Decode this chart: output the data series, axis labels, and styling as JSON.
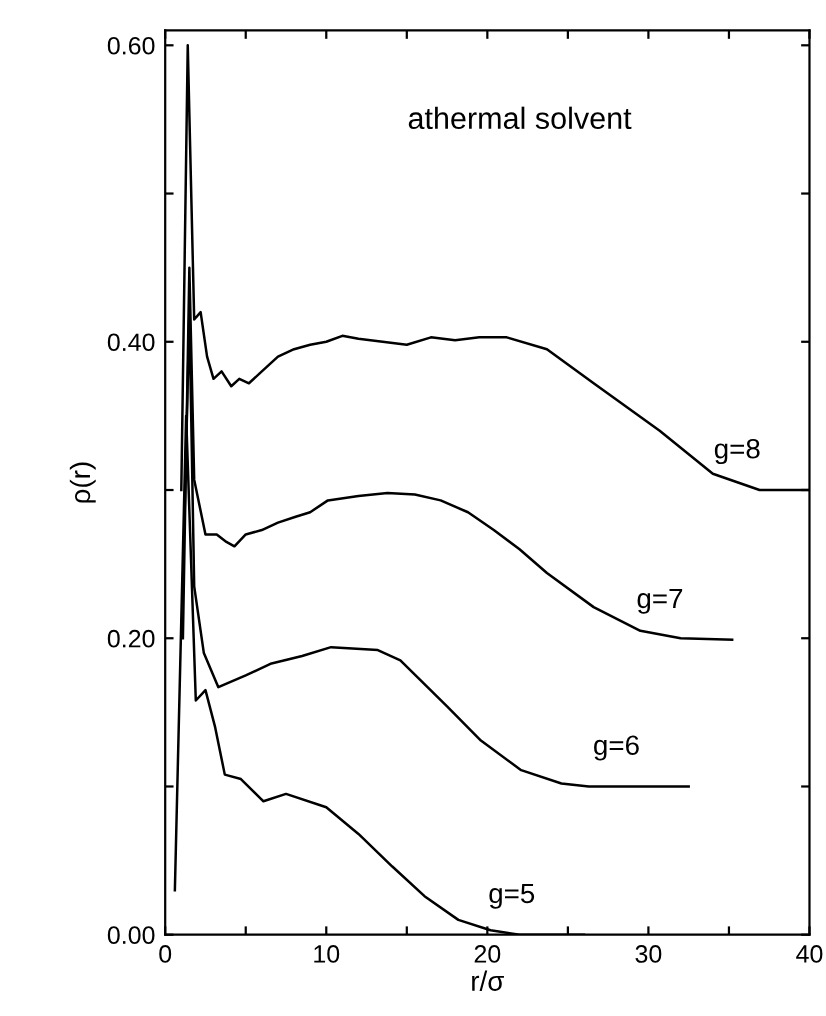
{
  "chart_data": {
    "type": "line",
    "xlabel": "r/σ",
    "ylabel": "ρ(r)",
    "annotations": [
      "athermal solvent"
    ],
    "xlim": [
      0,
      40
    ],
    "ylim": [
      0,
      0.61
    ],
    "xticks": [
      0,
      {
        "value": 5,
        "label": null
      },
      10,
      {
        "value": 15,
        "label": null
      },
      20,
      {
        "value": 25,
        "label": null
      },
      30,
      {
        "value": 35,
        "label": null
      },
      40
    ],
    "yticks": [
      {
        "value": 0,
        "label": "0.00"
      },
      {
        "value": 0.1,
        "label": null
      },
      {
        "value": 0.2,
        "label": "0.20"
      },
      {
        "value": 0.3,
        "label": null
      },
      {
        "value": 0.4,
        "label": "0.40"
      },
      {
        "value": 0.5,
        "label": null
      },
      {
        "value": 0.6,
        "label": "0.60"
      }
    ],
    "grid": false,
    "legend": false,
    "marker": "none",
    "line_style": "solid",
    "series": [
      {
        "name": "g=8",
        "color": "#000000",
        "x": [
          1.0,
          1.4,
          1.8,
          2.2,
          2.6,
          3.0,
          3.5,
          4.1,
          4.6,
          5.2,
          6.0,
          7.0,
          8.0,
          9.0,
          10.0,
          11.0,
          12.0,
          13.5,
          15.0,
          16.5,
          18.0,
          19.5,
          21.2,
          23.7,
          26.6,
          30.7,
          34.0,
          36.9,
          40.0
        ],
        "values": [
          0.3,
          0.6,
          0.415,
          0.42,
          0.39,
          0.375,
          0.38,
          0.37,
          0.375,
          0.372,
          0.38,
          0.39,
          0.395,
          0.398,
          0.4,
          0.404,
          0.402,
          0.4,
          0.398,
          0.403,
          0.401,
          0.403,
          0.403,
          0.395,
          0.372,
          0.34,
          0.311,
          0.3,
          0.3
        ]
      },
      {
        "name": "g=7",
        "color": "#000000",
        "x": [
          1.1,
          1.5,
          1.8,
          2.5,
          3.2,
          3.8,
          4.3,
          5.0,
          6.0,
          7.0,
          8.1,
          9.0,
          10.1,
          12.0,
          13.8,
          15.5,
          17.1,
          18.8,
          20.4,
          22.0,
          23.7,
          26.6,
          29.5,
          32.0,
          35.2
        ],
        "values": [
          0.2,
          0.45,
          0.307,
          0.27,
          0.27,
          0.265,
          0.262,
          0.27,
          0.273,
          0.278,
          0.282,
          0.285,
          0.293,
          0.296,
          0.298,
          0.297,
          0.293,
          0.285,
          0.273,
          0.26,
          0.244,
          0.221,
          0.205,
          0.2,
          0.199
        ]
      },
      {
        "name": "g=6",
        "color": "#000000",
        "x": [
          1.2,
          1.5,
          1.8,
          2.4,
          3.3,
          5.0,
          6.6,
          8.5,
          10.3,
          13.2,
          14.6,
          17.5,
          19.6,
          22.1,
          24.6,
          26.3,
          32.5
        ],
        "values": [
          0.28,
          0.42,
          0.235,
          0.19,
          0.167,
          0.175,
          0.183,
          0.188,
          0.194,
          0.192,
          0.185,
          0.154,
          0.131,
          0.111,
          0.102,
          0.1,
          0.1
        ]
      },
      {
        "name": "g=5",
        "color": "#000000",
        "x": [
          0.6,
          1.3,
          1.9,
          2.5,
          3.1,
          3.7,
          4.7,
          6.1,
          7.5,
          10.0,
          12.0,
          14.1,
          16.1,
          18.2,
          20.2,
          22.0,
          26.0
        ],
        "values": [
          0.03,
          0.35,
          0.158,
          0.165,
          0.14,
          0.108,
          0.105,
          0.09,
          0.095,
          0.086,
          0.068,
          0.046,
          0.026,
          0.01,
          0.003,
          0.0,
          0.0
        ]
      }
    ]
  }
}
